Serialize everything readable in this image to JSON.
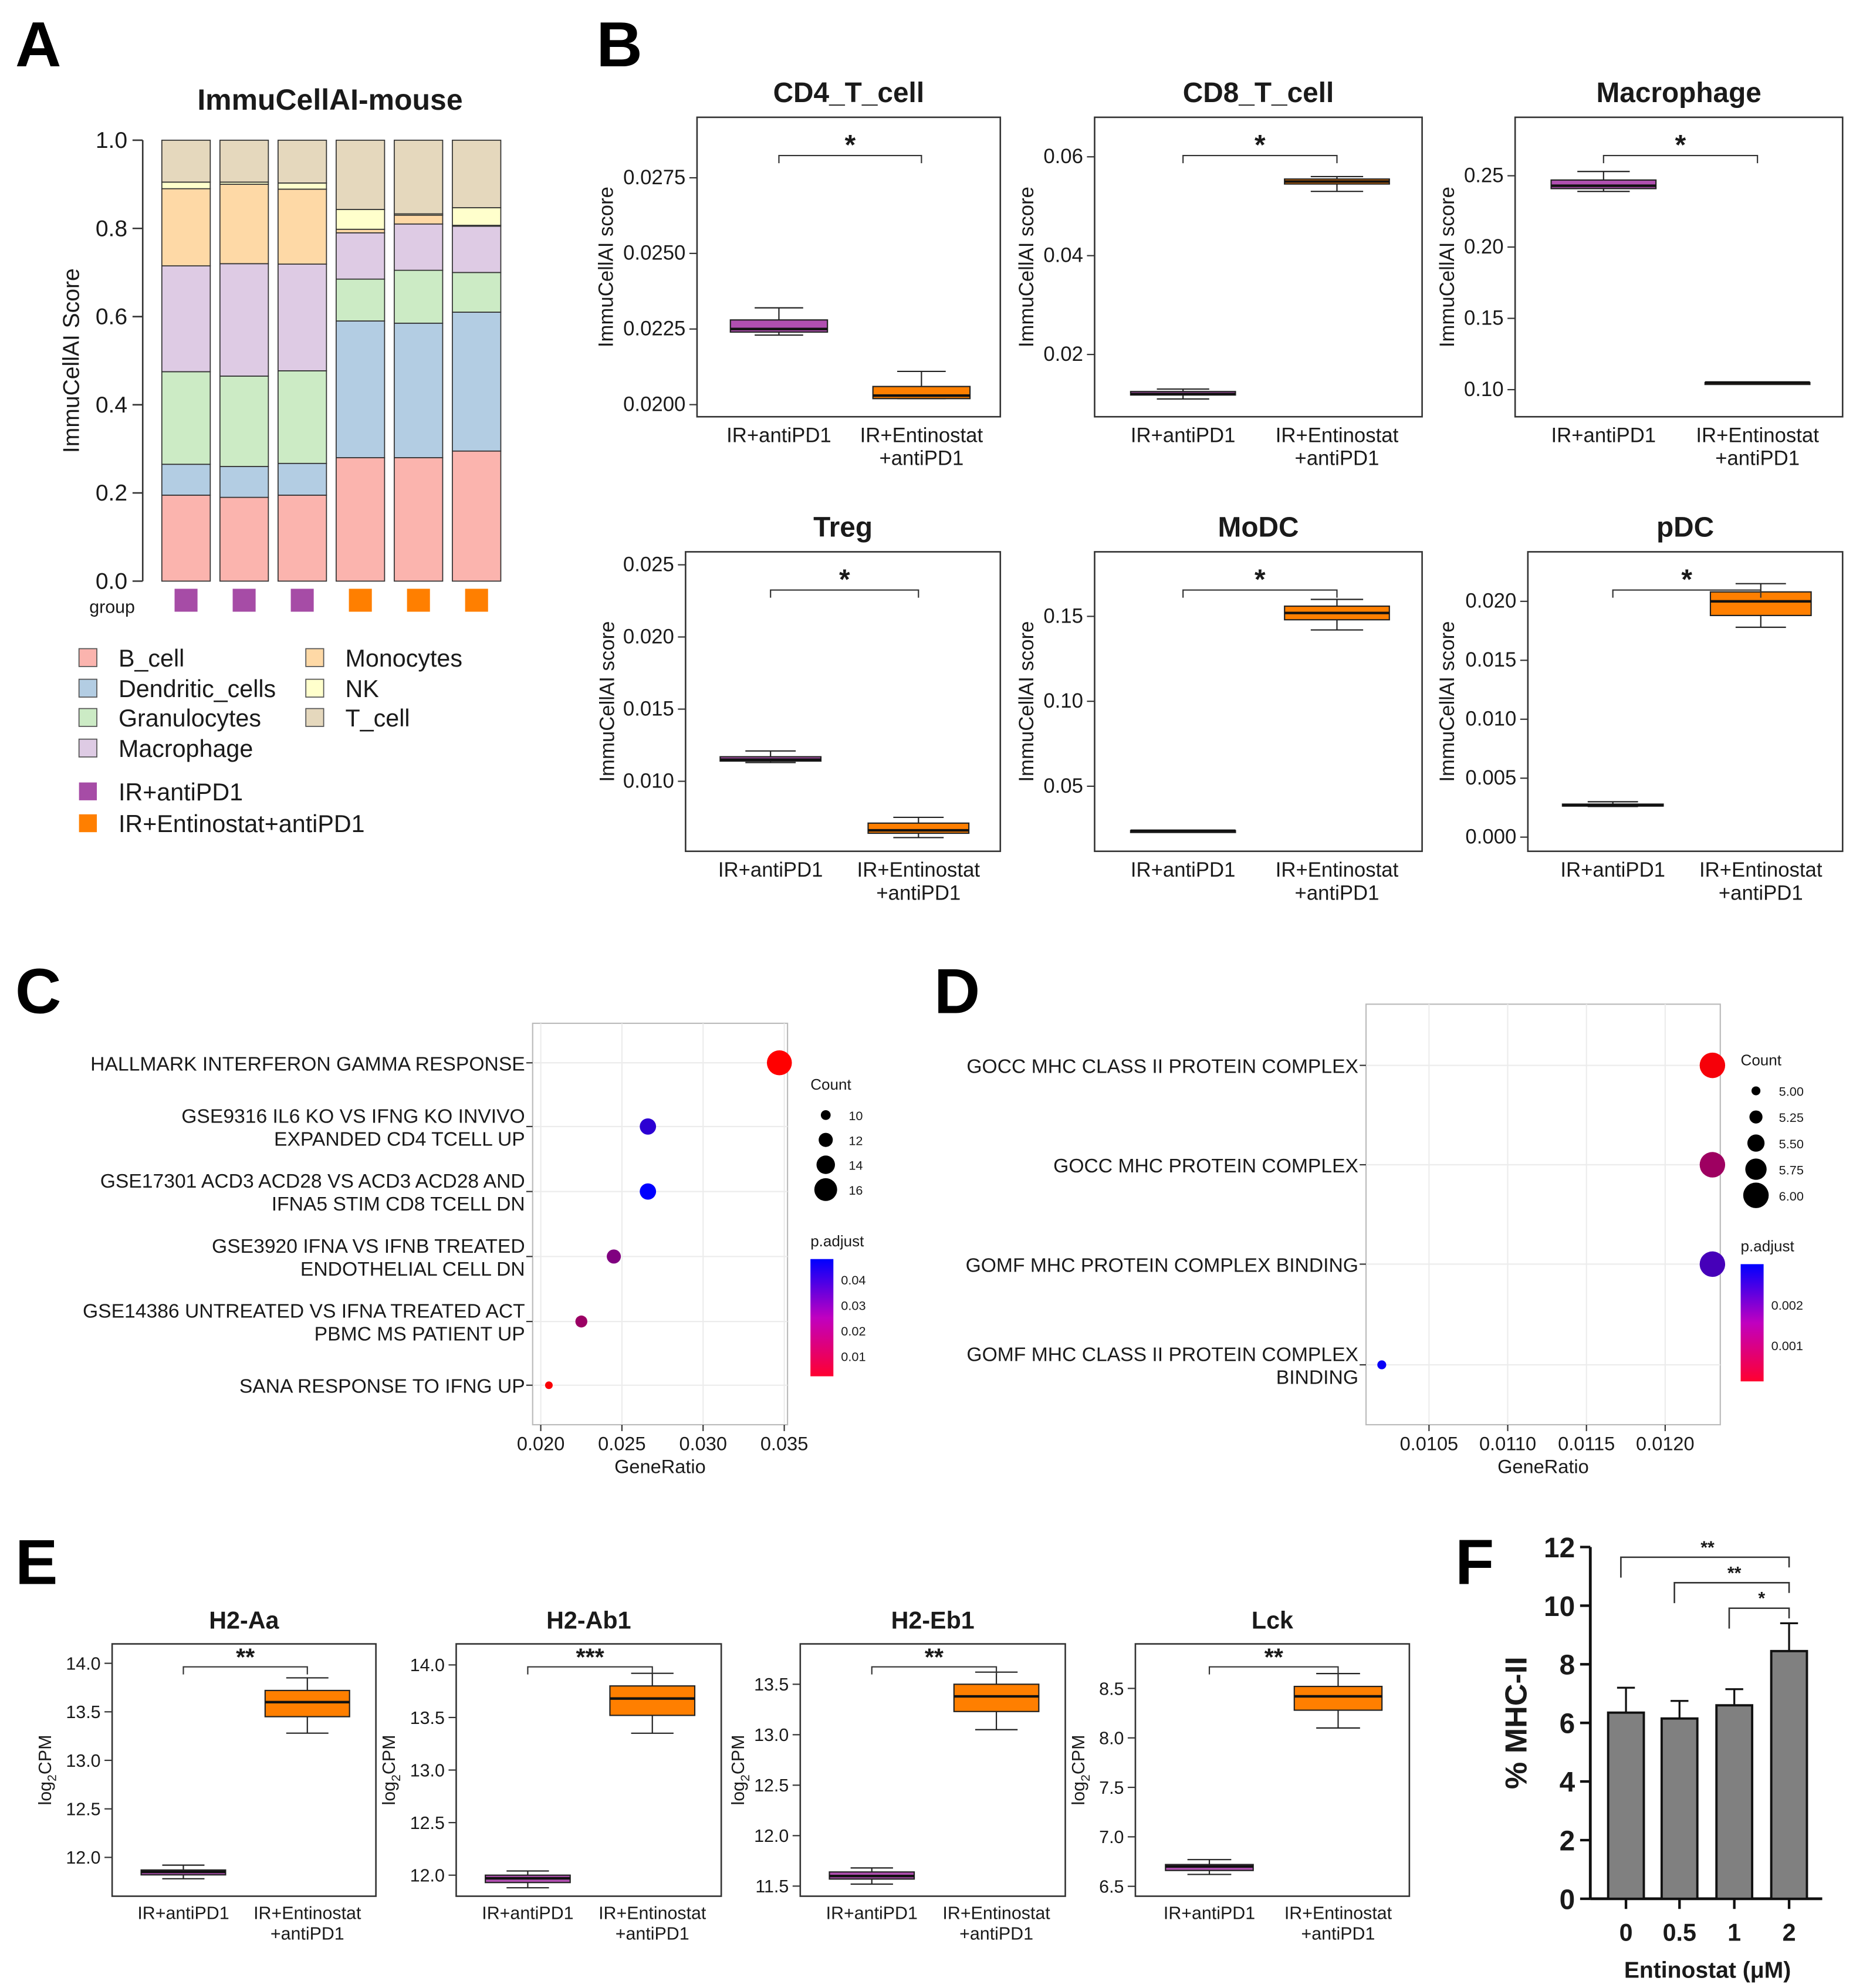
{
  "panel_labels": [
    "A",
    "B",
    "C",
    "D",
    "E",
    "F"
  ],
  "chart_data": [
    {
      "panel": "A",
      "type": "bar",
      "stacked": true,
      "title": "ImmuCellAI-mouse",
      "ylabel": "ImmuCellAI Score",
      "ylim": [
        0,
        1
      ],
      "yticks": [
        "0.0",
        "0.2",
        "0.4",
        "0.6",
        "0.8",
        "1.0"
      ],
      "group_label": "group",
      "components": [
        "B_cell",
        "Dendritic_cells",
        "Granulocytes",
        "Macrophage",
        "Monocytes",
        "NK",
        "T_cell"
      ],
      "component_colors": [
        "#FBB4AE",
        "#B3CDE3",
        "#CCEBC5",
        "#DECBE4",
        "#FED9A6",
        "#FFFFCC",
        "#E5D8BD"
      ],
      "groups": [
        {
          "name": "IR+antiPD1",
          "color": "#A64CA6"
        },
        {
          "name": "IR+Entinostat+antiPD1",
          "color": "#FF7F00"
        }
      ],
      "samples": [
        {
          "group": 0,
          "values": [
            0.195,
            0.07,
            0.21,
            0.24,
            0.175,
            0.015,
            0.095
          ]
        },
        {
          "group": 0,
          "values": [
            0.19,
            0.07,
            0.205,
            0.255,
            0.18,
            0.005,
            0.095
          ]
        },
        {
          "group": 0,
          "values": [
            0.195,
            0.072,
            0.21,
            0.242,
            0.17,
            0.014,
            0.097
          ]
        },
        {
          "group": 1,
          "values": [
            0.28,
            0.31,
            0.095,
            0.105,
            0.008,
            0.045,
            0.157
          ]
        },
        {
          "group": 1,
          "values": [
            0.28,
            0.305,
            0.12,
            0.105,
            0.02,
            0.003,
            0.167
          ]
        },
        {
          "group": 1,
          "values": [
            0.295,
            0.315,
            0.09,
            0.105,
            0.002,
            0.04,
            0.153
          ]
        }
      ]
    },
    {
      "panel": "B",
      "type": "boxplot",
      "ylabel": "ImmuCellAI score",
      "categories": [
        "IR+antiPD1",
        "IR+Entinostat",
        "+antiPD1"
      ],
      "box_colors": [
        "#B04FB0",
        "#FF7F00"
      ],
      "subplots": [
        {
          "title": "CD4_T_cell",
          "ylim": [
            0.0196,
            0.0295
          ],
          "yticks": [
            "0.0200",
            "0.0225",
            "0.0250",
            "0.0275"
          ],
          "sig": "*",
          "boxes": [
            [
              0.0223,
              0.0224,
              0.0225,
              0.0228,
              0.0232
            ],
            [
              0.0202,
              0.0202,
              0.0203,
              0.0206,
              0.0211
            ]
          ]
        },
        {
          "title": "CD8_T_cell",
          "ylim": [
            0.0074,
            0.068
          ],
          "yticks": [
            "0.02",
            "0.04",
            "0.06"
          ],
          "sig": "*",
          "boxes": [
            [
              0.011,
              0.0118,
              0.012,
              0.0125,
              0.013
            ],
            [
              0.053,
              0.0545,
              0.055,
              0.0555,
              0.056
            ]
          ]
        },
        {
          "title": "Macrophage",
          "ylim": [
            0.081,
            0.291
          ],
          "yticks": [
            "0.10",
            "0.15",
            "0.20",
            "0.25"
          ],
          "sig": "*",
          "boxes": [
            [
              0.239,
              0.241,
              0.243,
              0.247,
              0.253
            ],
            [
              0.105,
              0.105,
              0.105,
              0.105,
              0.105
            ]
          ]
        },
        {
          "title": "Treg",
          "ylim": [
            0.00515,
            0.0259
          ],
          "yticks": [
            "0.010",
            "0.015",
            "0.020",
            "0.025"
          ],
          "sig": "*",
          "boxes": [
            [
              0.0113,
              0.0114,
              0.0115,
              0.0117,
              0.0121
            ],
            [
              0.0061,
              0.0064,
              0.0066,
              0.0071,
              0.0075
            ]
          ]
        },
        {
          "title": "MoDC",
          "ylim": [
            0.0117,
            0.188
          ],
          "yticks": [
            "0.05",
            "0.10",
            "0.15"
          ],
          "sig": "*",
          "boxes": [
            [
              0.0236,
              0.0237,
              0.0238,
              0.0239,
              0.024
            ],
            [
              0.142,
              0.148,
              0.152,
              0.156,
              0.16
            ]
          ]
        },
        {
          "title": "pDC",
          "ylim": [
            -0.0012,
            0.0242
          ],
          "yticks": [
            "0.000",
            "0.005",
            "0.010",
            "0.015",
            "0.020"
          ],
          "sig": "*",
          "boxes": [
            [
              0.0026,
              0.0027,
              0.0027,
              0.0028,
              0.003
            ],
            [
              0.0178,
              0.0188,
              0.02,
              0.0208,
              0.0215
            ]
          ]
        }
      ]
    },
    {
      "panel": "C",
      "type": "scatter",
      "xlabel": "GeneRatio",
      "xlim": [
        0.0195,
        0.0352
      ],
      "xticks": [
        "0.020",
        "0.025",
        "0.030",
        "0.035"
      ],
      "terms": [
        {
          "label": [
            "HALLMARK INTERFERON GAMMA RESPONSE"
          ],
          "x": 0.0347,
          "count": 17,
          "padj": 0.002
        },
        {
          "label": [
            "GSE9316 IL6 KO VS IFNG KO INVIVO",
            "EXPANDED CD4 TCELL UP"
          ],
          "x": 0.0266,
          "count": 13,
          "padj": 0.04
        },
        {
          "label": [
            "GSE17301 ACD3 ACD28 VS ACD3 ACD28 AND",
            "IFNA5 STIM CD8 TCELL DN"
          ],
          "x": 0.0266,
          "count": 13,
          "padj": 0.048
        },
        {
          "label": [
            "GSE3920 IFNA VS IFNB TREATED",
            "ENDOTHELIAL CELL DN"
          ],
          "x": 0.0245,
          "count": 12,
          "padj": 0.025
        },
        {
          "label": [
            "GSE14386 UNTREATED VS IFNA TREATED ACT",
            "PBMC MS PATIENT UP"
          ],
          "x": 0.0225,
          "count": 11,
          "padj": 0.02
        },
        {
          "label": [
            "SANA RESPONSE TO IFNG UP"
          ],
          "x": 0.0205,
          "count": 9,
          "padj": 0.003
        }
      ],
      "size_legend": {
        "title": "Count",
        "values": [
          "10",
          "12",
          "14",
          "16"
        ]
      },
      "color_legend": {
        "title": "p.adjust",
        "ticks": [
          "0.04",
          "0.03",
          "0.02",
          "0.01"
        ],
        "range": [
          0.002,
          0.048
        ]
      }
    },
    {
      "panel": "D",
      "type": "scatter",
      "xlabel": "GeneRatio",
      "xlim": [
        0.0101,
        0.01235
      ],
      "xticks": [
        "0.0105",
        "0.0110",
        "0.0115",
        "0.0120"
      ],
      "terms": [
        {
          "label": [
            "GOCC MHC CLASS II PROTEIN COMPLEX"
          ],
          "x": 0.0123,
          "count": 6,
          "padj": 0.0002
        },
        {
          "label": [
            "GOCC MHC PROTEIN COMPLEX"
          ],
          "x": 0.0123,
          "count": 6,
          "padj": 0.0012
        },
        {
          "label": [
            "GOMF MHC PROTEIN COMPLEX BINDING"
          ],
          "x": 0.0123,
          "count": 6,
          "padj": 0.0022
        },
        {
          "label": [
            "GOMF MHC CLASS II PROTEIN COMPLEX",
            "BINDING"
          ],
          "x": 0.0102,
          "count": 5,
          "padj": 0.0029
        }
      ],
      "size_legend": {
        "title": "Count",
        "values": [
          "5.00",
          "5.25",
          "5.50",
          "5.75",
          "6.00"
        ]
      },
      "color_legend": {
        "title": "p.adjust",
        "ticks": [
          "0.002",
          "0.001"
        ],
        "range": [
          0.0001,
          0.003
        ]
      }
    },
    {
      "panel": "E",
      "type": "boxplot",
      "ylabel_base": "log",
      "ylabel_sub": "2",
      "ylabel_rest": "CPM",
      "categories": [
        "IR+antiPD1",
        "IR+Entinostat",
        "+antiPD1"
      ],
      "box_colors": [
        "#B04FB0",
        "#FF7F00"
      ],
      "subplots": [
        {
          "title": "H2-Aa",
          "ylim": [
            11.6,
            14.2
          ],
          "yticks": [
            "12.0",
            "12.5",
            "13.0",
            "13.5",
            "14.0"
          ],
          "sig": "**",
          "boxes": [
            [
              11.78,
              11.82,
              11.85,
              11.87,
              11.92
            ],
            [
              13.28,
              13.45,
              13.6,
              13.72,
              13.85
            ]
          ]
        },
        {
          "title": "H2-Ab1",
          "ylim": [
            11.8,
            14.2
          ],
          "yticks": [
            "12.0",
            "12.5",
            "13.0",
            "13.5",
            "14.0"
          ],
          "sig": "***",
          "boxes": [
            [
              11.88,
              11.93,
              11.97,
              12.0,
              12.04
            ],
            [
              13.35,
              13.52,
              13.68,
              13.8,
              13.92
            ]
          ]
        },
        {
          "title": "H2-Eb1",
          "ylim": [
            11.4,
            13.9
          ],
          "yticks": [
            "11.5",
            "12.0",
            "12.5",
            "13.0",
            "13.5"
          ],
          "sig": "**",
          "boxes": [
            [
              11.52,
              11.57,
              11.6,
              11.64,
              11.68
            ],
            [
              13.05,
              13.23,
              13.38,
              13.5,
              13.62
            ]
          ]
        },
        {
          "title": "Lck",
          "ylim": [
            6.4,
            8.95
          ],
          "yticks": [
            "6.5",
            "7.0",
            "7.5",
            "8.0",
            "8.5"
          ],
          "sig": "**",
          "boxes": [
            [
              6.62,
              6.66,
              6.7,
              6.72,
              6.77
            ],
            [
              8.1,
              8.28,
              8.42,
              8.52,
              8.65
            ]
          ]
        }
      ]
    },
    {
      "panel": "F",
      "type": "bar",
      "ylabel": "% MHC-II",
      "xlabel": "Entinostat (μM)",
      "categories": [
        "0",
        "0.5",
        "1",
        "2"
      ],
      "values": [
        6.35,
        6.15,
        6.6,
        8.45
      ],
      "error_upper": [
        7.2,
        6.75,
        7.15,
        9.4
      ],
      "ylim": [
        0,
        12
      ],
      "yticks": [
        "0",
        "2",
        "4",
        "6",
        "8",
        "10",
        "12"
      ],
      "bar_color": "#808080",
      "comparisons": [
        {
          "from": 0,
          "to": 3,
          "label": "**"
        },
        {
          "from": 1,
          "to": 3,
          "label": "**"
        },
        {
          "from": 2,
          "to": 3,
          "label": "*"
        }
      ]
    }
  ]
}
